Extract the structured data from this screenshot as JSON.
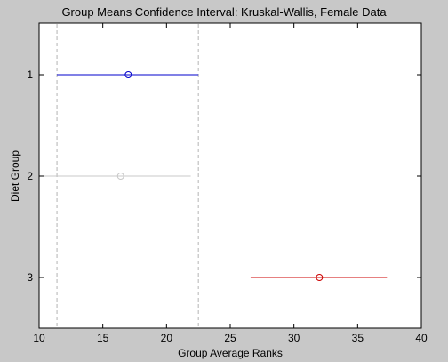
{
  "chart_data": {
    "type": "interval",
    "title": "Group Means Confidence Interval: Kruskal-Wallis, Female Data",
    "xlabel": "Group Average Ranks",
    "ylabel": "Diet Group",
    "xlim": [
      10,
      40
    ],
    "xticks": [
      10,
      15,
      20,
      25,
      30,
      35,
      40
    ],
    "yticks": [
      1,
      2,
      3
    ],
    "grid": false,
    "groups": [
      {
        "label": "1",
        "mean": 17.0,
        "low": 11.4,
        "high": 22.5,
        "color": "#0000cc"
      },
      {
        "label": "2",
        "mean": 16.4,
        "low": 10.0,
        "high": 21.9,
        "color": "#c8c8c8"
      },
      {
        "label": "3",
        "mean": 32.0,
        "low": 26.6,
        "high": 37.3,
        "color": "#cc0000"
      }
    ],
    "reference_lines": [
      11.4,
      22.5
    ]
  }
}
